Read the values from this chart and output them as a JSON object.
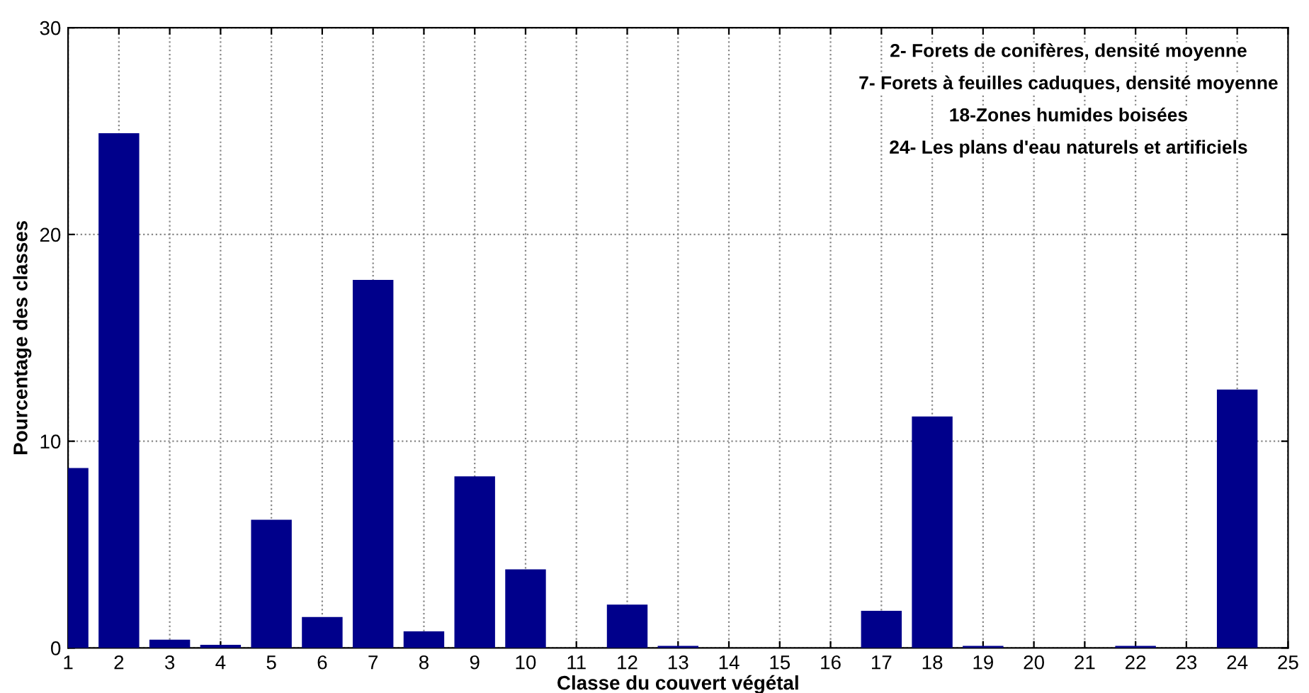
{
  "chart_data": {
    "type": "bar",
    "xlabel": "Classe du couvert végétal",
    "ylabel": "Pourcentage des classes",
    "x": [
      1,
      2,
      3,
      4,
      5,
      6,
      7,
      8,
      9,
      10,
      11,
      12,
      13,
      14,
      15,
      16,
      17,
      18,
      19,
      20,
      21,
      22,
      23,
      24
    ],
    "values": [
      8.7,
      24.9,
      0.4,
      0.15,
      6.2,
      1.5,
      17.8,
      0.8,
      8.3,
      3.8,
      0,
      2.1,
      0.1,
      0,
      0,
      0,
      1.8,
      11.2,
      0.1,
      0,
      0,
      0.1,
      0,
      12.5
    ],
    "color": "#00008b",
    "xlim": [
      1,
      25
    ],
    "xticks": [
      1,
      2,
      3,
      4,
      5,
      6,
      7,
      8,
      9,
      10,
      11,
      12,
      13,
      14,
      15,
      16,
      17,
      18,
      19,
      20,
      21,
      22,
      23,
      24,
      25
    ],
    "ylim": [
      0,
      30
    ],
    "yticks": [
      0,
      10,
      20,
      30
    ],
    "grid": true,
    "annotations": [
      "2- Forets de conifères, densité moyenne",
      "7- Forets à feuilles caduques, densité moyenne",
      "18-Zones humides boisées",
      "24- Les plans d'eau naturels et artificiels"
    ]
  }
}
